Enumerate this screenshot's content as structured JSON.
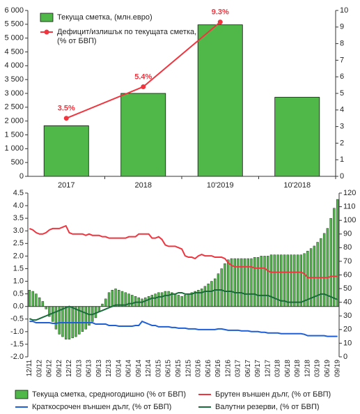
{
  "chart_data": [
    {
      "type": "bar",
      "legend": "upper left",
      "categories": [
        "2017",
        "2018",
        "10'2019",
        "10'2018"
      ],
      "ylim": [
        0,
        6000
      ],
      "yticks": [
        0,
        500,
        {
          "value": 1000,
          "label": "1 000"
        },
        {
          "value": 1500,
          "label": "1 500"
        },
        {
          "value": 2000,
          "label": "2 000"
        },
        {
          "value": 2500,
          "label": "2 500"
        },
        {
          "value": 3000,
          "label": "3 000"
        },
        {
          "value": 3500,
          "label": "3 500"
        },
        {
          "value": 4000,
          "label": "4 000"
        },
        {
          "value": 4500,
          "label": "4 500"
        },
        {
          "value": 5000,
          "label": "5 000"
        },
        {
          "value": 5500,
          "label": "5 500"
        },
        {
          "value": 6000,
          "label": "6 000"
        }
      ],
      "y2lim": [
        0,
        10
      ],
      "y2ticks": [
        0,
        1,
        2,
        3,
        4,
        5,
        6,
        7,
        8,
        9,
        10
      ],
      "series": [
        {
          "name": "Текуща сметка, (млн.евро)",
          "type": "bar",
          "color": "#4fb848",
          "values": [
            1830,
            3000,
            5480,
            2860
          ]
        },
        {
          "name": "Дефицит/излишък по текущата сметка,\n(% от БВП)",
          "type": "line",
          "axis": "y2",
          "color": "#f0353f",
          "values": [
            3.5,
            5.4,
            9.3,
            null
          ],
          "value_labels": [
            "3.5%",
            "5.4%",
            "9.3%",
            null
          ]
        }
      ]
    },
    {
      "type": "bar",
      "legend": "bottom",
      "categories": [
        "12/11",
        null,
        null,
        "03/12",
        null,
        null,
        "06/12",
        null,
        null,
        "09/12",
        null,
        null,
        "12/12",
        null,
        null,
        "03/13",
        null,
        null,
        "06/13",
        null,
        null,
        "09/13",
        null,
        null,
        "12/13",
        null,
        null,
        "03/14",
        null,
        null,
        "06/14",
        null,
        null,
        "09/14",
        null,
        null,
        "12/14",
        null,
        null,
        "03/15",
        null,
        null,
        "06/15",
        null,
        null,
        "09/15",
        null,
        null,
        "12/15",
        null,
        null,
        "03/16",
        null,
        null,
        "06/16",
        null,
        null,
        "09/16",
        null,
        null,
        "12/16",
        null,
        null,
        "03/17",
        null,
        null,
        "06/17",
        null,
        null,
        "09/17",
        null,
        null,
        "12/17",
        null,
        null,
        "03/18",
        null,
        null,
        "06/18",
        null,
        null,
        "09/18",
        null,
        null,
        "12/18",
        null,
        null,
        "03/19",
        null,
        null,
        "06/19",
        null,
        null,
        "09/19"
      ],
      "ylim": [
        -2,
        4.5
      ],
      "yticks": [
        {
          "value": -2,
          "label": "-2.0"
        },
        -1.5,
        {
          "value": -1,
          "label": "-1.0"
        },
        -0.5,
        {
          "value": 0,
          "label": "0.0"
        },
        0.5,
        {
          "value": 1,
          "label": "1.0"
        },
        1.5,
        {
          "value": 2,
          "label": "2.0"
        },
        2.5,
        {
          "value": 3,
          "label": "3.0"
        },
        3.5,
        {
          "value": 4,
          "label": "4.0"
        },
        4.5
      ],
      "y2lim": [
        0,
        120
      ],
      "y2ticks": [
        0,
        10,
        20,
        30,
        40,
        50,
        60,
        70,
        80,
        90,
        100,
        110,
        120
      ],
      "series": [
        {
          "name": "Текуща сметка, средногодишно (% от БВП)",
          "type": "bar",
          "color": "#4fb848",
          "values": [
            0.65,
            0.6,
            0.5,
            0.35,
            0.2,
            -0.1,
            -0.4,
            -0.6,
            -0.9,
            -1.1,
            -1.2,
            -1.3,
            -1.3,
            -1.25,
            -1.2,
            -1.1,
            -1.0,
            -0.9,
            -0.75,
            -0.6,
            -0.45,
            -0.2,
            0.1,
            0.3,
            0.55,
            0.65,
            0.7,
            0.65,
            0.6,
            0.55,
            0.5,
            0.45,
            0.4,
            0.35,
            0.3,
            0.35,
            0.4,
            0.45,
            0.5,
            0.55,
            0.55,
            0.6,
            0.6,
            0.55,
            0.5,
            0.45,
            0.4,
            0.45,
            0.5,
            0.55,
            0.6,
            0.65,
            0.7,
            0.8,
            0.9,
            1.0,
            1.1,
            1.3,
            1.5,
            1.7,
            1.85,
            1.9,
            1.9,
            1.9,
            1.9,
            1.9,
            1.9,
            1.9,
            1.95,
            1.95,
            2.0,
            2.0,
            2.0,
            2.05,
            2.05,
            2.05,
            2.05,
            2.05,
            2.05,
            2.05,
            2.05,
            2.05,
            2.05,
            2.1,
            2.2,
            2.3,
            2.4,
            2.55,
            2.7,
            2.9,
            3.1,
            3.5,
            3.9,
            4.25
          ]
        },
        {
          "name": "Брутен външен дълг, (% от БВП)",
          "type": "line",
          "axis": "y2",
          "color": "#f0353f",
          "values": [
            94,
            93,
            91,
            90,
            90,
            91,
            93,
            94,
            94,
            94,
            95,
            96,
            91,
            90,
            90,
            90,
            90,
            89,
            90,
            89,
            89,
            89,
            88,
            88,
            87,
            87,
            87,
            87,
            87,
            87,
            88,
            88,
            88,
            90,
            90,
            90,
            90,
            87,
            87,
            88,
            86,
            82,
            81,
            81,
            81,
            80,
            79,
            74,
            73,
            73,
            72,
            74,
            75,
            74,
            74,
            74,
            73,
            73,
            73,
            72,
            69,
            67,
            66,
            66,
            66,
            66,
            66,
            66,
            65,
            65,
            65,
            65,
            63,
            62,
            62,
            62,
            62,
            62,
            62,
            62,
            62,
            62,
            62,
            61,
            58,
            58,
            58,
            58,
            58,
            58,
            58,
            59,
            59,
            59
          ]
        },
        {
          "name": "Краткосрочен външен дълг, (% от БВП)",
          "type": "line",
          "axis": "y2",
          "color": "#1f5fd6",
          "values": [
            26,
            26,
            25,
            25,
            25,
            25,
            25,
            24.5,
            24.5,
            25,
            25,
            25,
            25,
            25,
            25,
            25,
            25,
            25,
            25,
            25,
            24,
            24,
            24,
            24,
            23,
            23,
            23,
            22.5,
            22.5,
            22.5,
            22.5,
            22.5,
            23,
            23,
            26,
            25,
            24,
            23,
            23,
            22,
            22,
            22,
            22,
            21.5,
            21.5,
            21,
            21,
            21,
            20.5,
            20.5,
            20.5,
            20,
            20,
            20,
            20,
            20,
            20,
            20.5,
            20.5,
            20,
            19.5,
            19.5,
            19.5,
            19.5,
            19,
            19,
            19,
            18.5,
            18.5,
            18.5,
            18,
            18,
            17.5,
            17.5,
            17.5,
            17.5,
            17,
            17,
            17,
            17,
            17,
            17,
            17,
            16.5,
            15.5,
            15.5,
            15.5,
            15.5,
            15.5,
            15.5,
            15,
            15,
            15,
            15
          ]
        },
        {
          "name": "Валутни резерви, (% от БВП)",
          "type": "line",
          "axis": "y2",
          "color": "#1a6b3a",
          "values": [
            28,
            27,
            27,
            28,
            29,
            30,
            31,
            32,
            33,
            34,
            35,
            36,
            37,
            36,
            35,
            34,
            33,
            32,
            31,
            31,
            32,
            33,
            34,
            35,
            36,
            37,
            38,
            38,
            38,
            38,
            39,
            39,
            40,
            40,
            40,
            41,
            42,
            43,
            43,
            44,
            44,
            45,
            45,
            46,
            46,
            47,
            47,
            46,
            46,
            46,
            47,
            47,
            47,
            48,
            48,
            48,
            49,
            49,
            49,
            48,
            48,
            48,
            47,
            47,
            47,
            46,
            46,
            46,
            46,
            45,
            45,
            45,
            45,
            44,
            43,
            42,
            41,
            41,
            40,
            40,
            40,
            40,
            40,
            41,
            42,
            43,
            44,
            45,
            46,
            46,
            45,
            44,
            43,
            42
          ]
        }
      ]
    }
  ]
}
